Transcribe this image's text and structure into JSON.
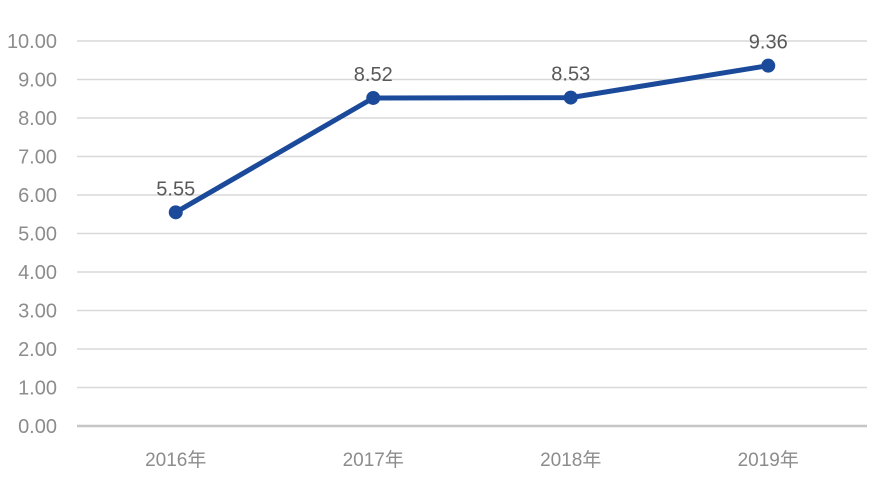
{
  "page": {
    "background": "#FFFFFF"
  },
  "chart_data": {
    "type": "line",
    "title": "",
    "xlabel": "",
    "ylabel": "",
    "categories": [
      "2016年",
      "2017年",
      "2018年",
      "2019年"
    ],
    "values": [
      5.55,
      8.52,
      8.53,
      9.36
    ],
    "data_labels": [
      "5.55",
      "8.52",
      "8.53",
      "9.36"
    ],
    "ylim": [
      0,
      10
    ],
    "y_tick_step": 1,
    "y_tick_labels": [
      "0.00",
      "1.00",
      "2.00",
      "3.00",
      "4.00",
      "5.00",
      "6.00",
      "7.00",
      "8.00",
      "9.00",
      "10.00"
    ],
    "grid": true,
    "legend": false,
    "colors": {
      "line": "#1B4A9B",
      "marker": "#1B4A9B",
      "gridline": "#D9D9D9",
      "axis_line": "#C6C6C6",
      "tick_label": "#8C8C8C",
      "x_label": "#8C8C8C",
      "data_label": "#595959"
    }
  }
}
